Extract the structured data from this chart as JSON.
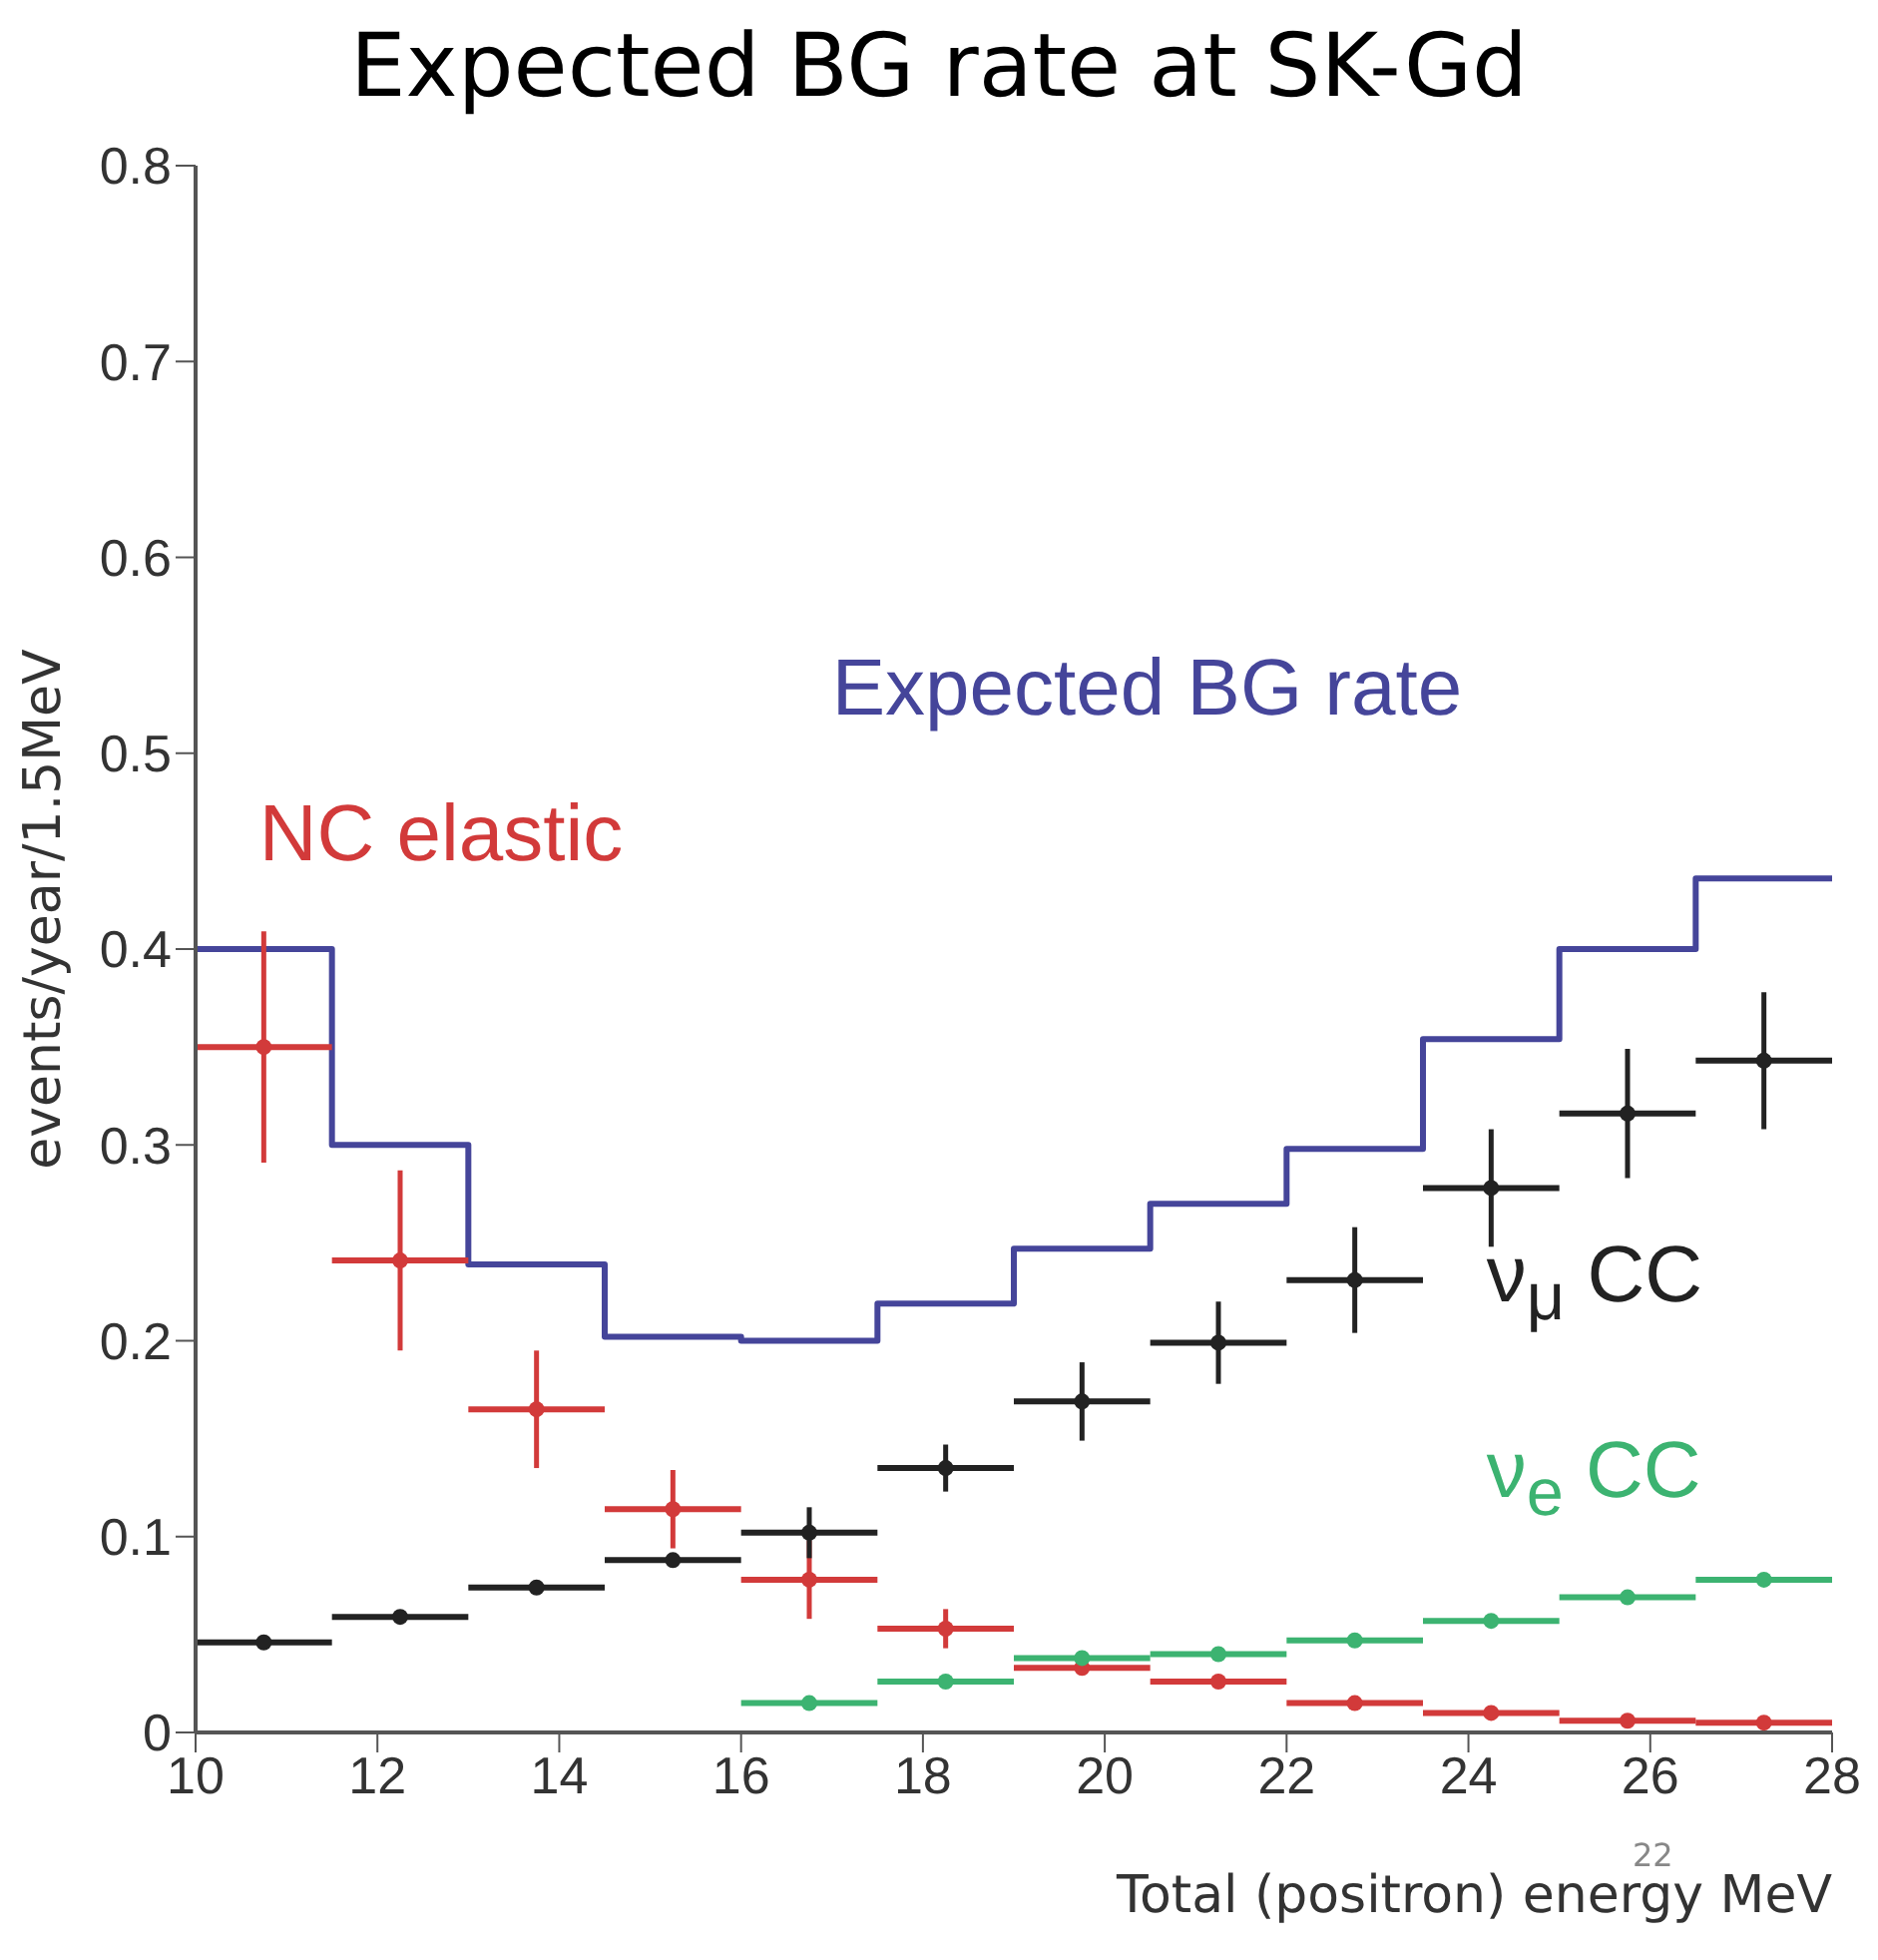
{
  "chart_data": {
    "type": "scatter",
    "title": "Expected BG rate at SK-Gd",
    "xlabel": "Total (positron) energy  MeV",
    "ylabel": "events/year/1.5MeV",
    "x": [
      10.75,
      12.25,
      13.75,
      15.25,
      16.75,
      18.25,
      19.75,
      21.25,
      22.75,
      24.25,
      25.75,
      27.25
    ],
    "xlim": [
      10,
      28
    ],
    "xticks": [
      10,
      12,
      14,
      16,
      18,
      20,
      22,
      24,
      26,
      28
    ],
    "ylim": [
      0,
      0.8
    ],
    "yticks": [
      0,
      0.1,
      0.2,
      0.3,
      0.4,
      0.5,
      0.6,
      0.7,
      0.8
    ],
    "grid": false,
    "legend": false,
    "marker": "circle",
    "series": [
      {
        "name": "Expected BG rate",
        "type": "step",
        "marker": "none",
        "color": "#45459a",
        "x": [
          10,
          11.5,
          13,
          14.5,
          16,
          17.5,
          19,
          20.5,
          22,
          23.5,
          25,
          26.5,
          28
        ],
        "values": [
          0.4,
          0.3,
          0.239,
          0.202,
          0.2,
          0.219,
          0.247,
          0.27,
          0.298,
          0.354,
          0.4,
          0.436,
          0.436
        ]
      },
      {
        "name": "NC elastic",
        "color": "#d23a3a",
        "values": [
          0.35,
          0.241,
          0.165,
          0.114,
          0.078,
          0.053,
          0.033,
          0.026,
          0.015,
          0.01,
          0.006,
          0.005
        ],
        "errors": [
          0.059,
          0.046,
          0.03,
          0.02,
          0.02,
          0.01,
          null,
          null,
          null,
          null,
          null,
          null
        ],
        "xerrors": [
          0.75,
          0.75,
          0.75,
          0.75,
          0.75,
          0.75,
          0.75,
          0.75,
          0.75,
          0.75,
          0.75,
          0.75
        ]
      },
      {
        "name": "ν$_{μ}$ CC",
        "color": "#222222",
        "values": [
          0.046,
          0.059,
          0.074,
          0.088,
          0.102,
          0.135,
          0.169,
          0.199,
          0.231,
          0.278,
          0.316,
          0.343
        ],
        "errors": [
          null,
          null,
          null,
          null,
          0.013,
          0.012,
          0.02,
          0.021,
          0.027,
          0.03,
          0.033,
          0.035
        ],
        "xerrors": [
          0.75,
          0.75,
          0.75,
          0.75,
          0.75,
          0.75,
          0.75,
          0.75,
          0.75,
          0.75,
          0.75,
          0.75
        ]
      },
      {
        "name": "ν$_{e}$ CC",
        "color": "#3cb371",
        "values": [
          null,
          null,
          null,
          null,
          0.015,
          0.026,
          0.038,
          0.04,
          0.047,
          0.057,
          0.069,
          0.078
        ],
        "xerrors": [
          null,
          null,
          null,
          null,
          0.75,
          0.75,
          0.75,
          0.75,
          0.75,
          0.75,
          0.75,
          0.75
        ]
      }
    ],
    "annotations": [
      "22"
    ]
  }
}
